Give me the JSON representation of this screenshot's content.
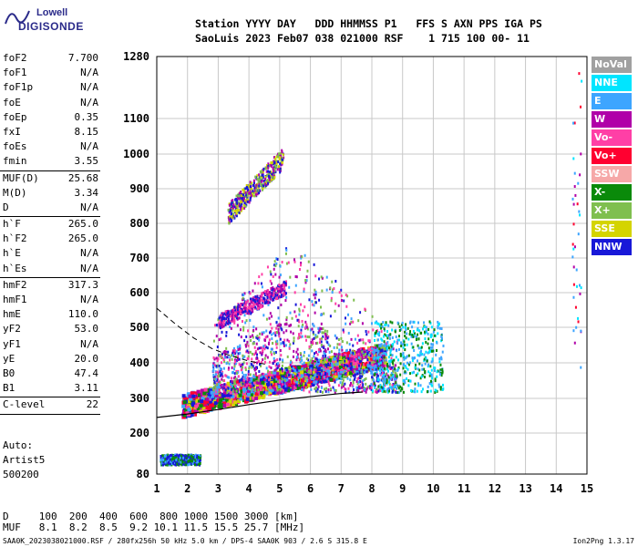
{
  "logo": {
    "top": "Lowell",
    "bottom": "DIGISONDE"
  },
  "header": {
    "line1": "Station YYYY DAY   DDD HHMMSS P1   FFS S AXN PPS IGA PS",
    "line2": "SaoLuis 2023 Feb07 038 021000 RSF    1 715 100 00- 11"
  },
  "params": [
    {
      "name": "foF2",
      "value": "7.700"
    },
    {
      "name": "foF1",
      "value": "N/A"
    },
    {
      "name": "foF1p",
      "value": "N/A"
    },
    {
      "name": "foE",
      "value": "N/A"
    },
    {
      "name": "foEp",
      "value": "0.35"
    },
    {
      "name": "fxI",
      "value": "8.15"
    },
    {
      "name": "foEs",
      "value": "N/A"
    },
    {
      "name": "fmin",
      "value": "3.55"
    }
  ],
  "params2": [
    {
      "name": "MUF(D)",
      "value": "25.68"
    },
    {
      "name": "M(D)",
      "value": "3.34"
    },
    {
      "name": "D",
      "value": "N/A"
    }
  ],
  "params3": [
    {
      "name": "h`F",
      "value": "265.0"
    },
    {
      "name": "h`F2",
      "value": "265.0"
    },
    {
      "name": "h`E",
      "value": "N/A"
    },
    {
      "name": "h`Es",
      "value": "N/A"
    }
  ],
  "params4": [
    {
      "name": "hmF2",
      "value": "317.3"
    },
    {
      "name": "hmF1",
      "value": "N/A"
    },
    {
      "name": "hmE",
      "value": "110.0"
    },
    {
      "name": "yF2",
      "value": "53.0"
    },
    {
      "name": "yF1",
      "value": "N/A"
    },
    {
      "name": "yE",
      "value": "20.0"
    },
    {
      "name": "B0",
      "value": "47.4"
    },
    {
      "name": "B1",
      "value": "3.11"
    }
  ],
  "clevel": {
    "name": "C-level",
    "value": "22"
  },
  "auto": {
    "line1": "Auto:",
    "line2": "Artist5",
    "line3": "500200"
  },
  "legend": [
    {
      "label": "NoVal",
      "color": "#a0a0a0"
    },
    {
      "label": "NNE",
      "color": "#00e5ff"
    },
    {
      "label": "E",
      "color": "#3da5ff"
    },
    {
      "label": "W",
      "color": "#b000a8"
    },
    {
      "label": "Vo-",
      "color": "#ff3fa6"
    },
    {
      "label": "Vo+",
      "color": "#ff0030"
    },
    {
      "label": "SSW",
      "color": "#f6a8a8"
    },
    {
      "label": "X-",
      "color": "#0a8a0a"
    },
    {
      "label": "X+",
      "color": "#7fbf4f"
    },
    {
      "label": "SSE",
      "color": "#d4d400"
    },
    {
      "label": "NNW",
      "color": "#1818d8"
    }
  ],
  "bottom": {
    "d_line": "D     100  200  400  600  800 1000 1500 3000 [km]",
    "muf_line": "MUF   8.1  8.2  8.5  9.2 10.1 11.5 15.5 25.7 [MHz]"
  },
  "footer": "SAA0K_2023038021000.RSF / 280fx256h 50 kHz 5.0 km / DPS-4 SAA0K 903 / 2.6 S 315.8 E",
  "version": "Ion2Png 1.3.17",
  "chart_data": {
    "type": "scatter",
    "x_ticks": [
      1,
      2,
      3,
      4,
      5,
      6,
      7,
      8,
      9,
      10,
      11,
      12,
      13,
      14,
      15
    ],
    "y_ticks": [
      80,
      200,
      300,
      400,
      500,
      600,
      700,
      800,
      900,
      1000,
      1100,
      1280
    ],
    "xlim": [
      1,
      15
    ],
    "ylim": [
      80,
      1280
    ],
    "grid": true,
    "clusters": [
      {
        "desc": "main F trace",
        "x": [
          1.8,
          8.4
        ],
        "y": [
          250,
          420
        ],
        "colors": [
          "Vo-",
          "Vo+",
          "X-",
          "NNW",
          "W",
          "E",
          "SSE"
        ]
      },
      {
        "desc": "spread F",
        "x": [
          2.8,
          8.8
        ],
        "y": [
          320,
          760
        ],
        "colors": [
          "NNW",
          "W",
          "Vo-",
          "X+",
          "E"
        ]
      },
      {
        "desc": "upper trace",
        "x": [
          3.3,
          5.1
        ],
        "y": [
          800,
          990
        ],
        "colors": [
          "X+",
          "SSE",
          "NNW",
          "W"
        ]
      },
      {
        "desc": "O trace 2nd",
        "x": [
          3.0,
          5.2
        ],
        "y": [
          500,
          640
        ],
        "colors": [
          "Vo-",
          "W",
          "NNW"
        ]
      },
      {
        "desc": "high freq",
        "x": [
          8.0,
          10.3
        ],
        "y": [
          320,
          520
        ],
        "colors": [
          "E",
          "NNE",
          "X-"
        ]
      },
      {
        "desc": "low cluster",
        "x": [
          1.1,
          2.4
        ],
        "y": [
          110,
          140
        ],
        "colors": [
          "NNW",
          "E",
          "X-"
        ]
      },
      {
        "desc": "right edge",
        "x": [
          14.5,
          14.8
        ],
        "y": [
          380,
          1240
        ],
        "colors": [
          "W",
          "NNE",
          "E",
          "Vo+"
        ]
      }
    ],
    "profile_curve": [
      [
        1,
        245
      ],
      [
        2,
        255
      ],
      [
        3,
        268
      ],
      [
        4,
        282
      ],
      [
        5,
        295
      ],
      [
        6,
        305
      ],
      [
        7,
        314
      ],
      [
        7.7,
        318
      ]
    ],
    "dashed_curve": [
      [
        1,
        555
      ],
      [
        1.6,
        510
      ],
      [
        2.2,
        470
      ],
      [
        2.8,
        440
      ],
      [
        3.4,
        420
      ],
      [
        4,
        405
      ],
      [
        4.6,
        395
      ]
    ]
  }
}
